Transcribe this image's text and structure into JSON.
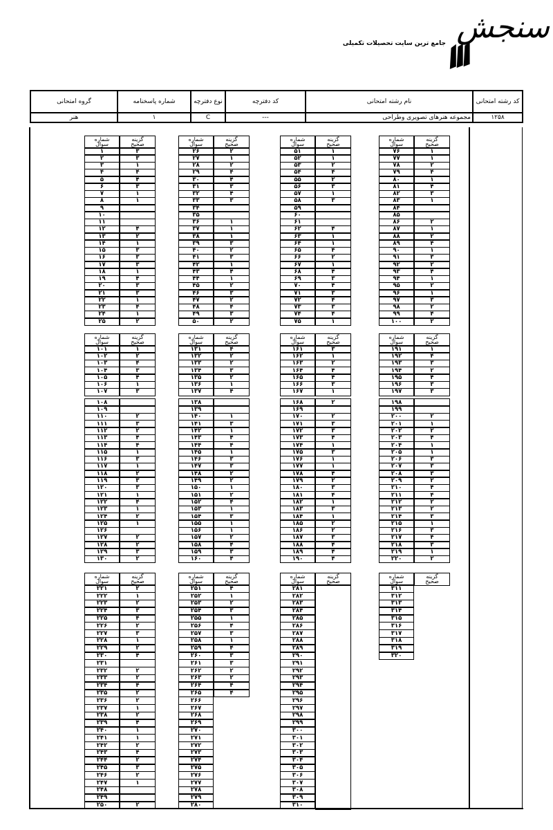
{
  "logo": {
    "wordmark": "سنجش",
    "tagline": "جامع ترین سایت تحصیلات تکمیلی"
  },
  "header": {
    "columns": [
      "کد رشته امتحانی",
      "نام رشته امتحانی",
      "کد دفترچه",
      "نوع دفترچه",
      "شماره پاسخنامه",
      "گروه امتحانی"
    ],
    "values": [
      "۱۲۵۸",
      "مجموعه هنرهای تصویری وطراحی",
      "---",
      "C",
      "۱",
      "هنر"
    ]
  },
  "table_labels": {
    "question_number": "شماره سوال",
    "correct_option": "گزینه صحیح"
  },
  "sections": [
    {
      "columns": [
        {
          "from": 1,
          "to": 25,
          "answers": [
            "۳",
            "۳",
            "۱",
            "۴",
            "۴",
            "۳",
            "۱",
            "۱",
            "",
            "",
            "",
            "۴",
            "۲",
            "۱",
            "۳",
            "۳",
            "۳",
            "۱",
            "۴",
            "۳",
            "۳",
            "۱",
            "۴",
            "۱",
            "۲"
          ]
        },
        {
          "from": 26,
          "to": 50,
          "answers": [
            "۲",
            "۱",
            "۲",
            "۴",
            "۴",
            "۳",
            "۴",
            "۳",
            "",
            "",
            "۱",
            "۱",
            "۱",
            "۳",
            "۲",
            "۳",
            "۱",
            "۴",
            "۱",
            "۲",
            "۳",
            "۲",
            "۴",
            "۳",
            "۲"
          ]
        },
        {
          "from": 51,
          "to": 75,
          "answers": [
            "۱",
            "۱",
            "۲",
            "۴",
            "۲",
            "۳",
            "۱",
            "۳",
            "",
            "",
            "",
            "۴",
            "۱",
            "۱",
            "۴",
            "۲",
            "۱",
            "۴",
            "۳",
            "۴",
            "۳",
            "۴",
            "۳",
            "۴",
            "۱"
          ]
        },
        {
          "from": 76,
          "to": 100,
          "answers": [
            "۱",
            "۱",
            "۲",
            "۴",
            "۱",
            "۴",
            "۳",
            "۱",
            "",
            "",
            "۲",
            "۱",
            "۲",
            "۴",
            "۱",
            "۳",
            "۲",
            "۴",
            "۱",
            "۲",
            "۱",
            "۳",
            "۲",
            "۴",
            "۲"
          ]
        }
      ]
    },
    {
      "columns": [
        {
          "from": 101,
          "to": 130,
          "answers": [
            "۱",
            "۲",
            "۴",
            "۳",
            "۴",
            "۱",
            "۳",
            "",
            "",
            "۲",
            "۳",
            "۲",
            "۴",
            "۴",
            "۱",
            "۳",
            "۱",
            "۲",
            "۳",
            "۳",
            "۱",
            "۴",
            "۱",
            "۲",
            "۱",
            "",
            "۲",
            "۲",
            "۳",
            "۲"
          ]
        },
        {
          "from": 131,
          "to": 160,
          "answers": [
            "۴",
            "۲",
            "۲",
            "۳",
            "۲",
            "۱",
            "۴",
            "",
            "",
            "۱",
            "۳",
            "۱",
            "۴",
            "۴",
            "۱",
            "۳",
            "۳",
            "۲",
            "۲",
            "۱",
            "۲",
            "۴",
            "۱",
            "۳",
            "۱",
            "۱",
            "۲",
            "۴",
            "۳",
            "۴"
          ]
        },
        {
          "from": 161,
          "to": 190,
          "answers": [
            "۳",
            "۱",
            "۲",
            "۴",
            "۴",
            "۳",
            "۱",
            "۲",
            "",
            "۲",
            "۳",
            "۳",
            "۴",
            "۱",
            "۳",
            "۱",
            "۱",
            "۴",
            "۲",
            "۳",
            "۴",
            "۱",
            "۳",
            "۱",
            "۲",
            "۲",
            "۳",
            "۴",
            "۴",
            "۴"
          ]
        },
        {
          "from": 191,
          "to": 220,
          "answers": [
            "۱",
            "۴",
            "۳",
            "۲",
            "۴",
            "۳",
            "۳",
            "",
            "",
            "۲",
            "۱",
            "۲",
            "۴",
            "۱",
            "۱",
            "۳",
            "۳",
            "۳",
            "۲",
            "۴",
            "۴",
            "۲",
            "۲",
            "۳",
            "۱",
            "۳",
            "۴",
            "۳",
            "۱",
            "۲"
          ]
        }
      ]
    },
    {
      "columns": [
        {
          "from": 221,
          "to": 250,
          "answers": [
            "۲",
            "۱",
            "۲",
            "۳",
            "۴",
            "۲",
            "۳",
            "۱",
            "۲",
            "۴",
            "",
            "۲",
            "۲",
            "۴",
            "۲",
            "۲",
            "۱",
            "۲",
            "۴",
            "۱",
            "۱",
            "۲",
            "۴",
            "۲",
            "۳",
            "۲",
            "۱",
            "",
            "",
            "۲"
          ]
        },
        {
          "from": 251,
          "to": 280,
          "answers": [
            "۴",
            "۱",
            "۲",
            "۳",
            "۱",
            "۴",
            "۳",
            "۱",
            "۴",
            "۳",
            "۳",
            "۲",
            "۲",
            "۴",
            "۴"
          ]
        },
        {
          "from": 281,
          "to": 310,
          "answers": []
        },
        {
          "from": 311,
          "to": 320,
          "answers": []
        }
      ]
    }
  ]
}
